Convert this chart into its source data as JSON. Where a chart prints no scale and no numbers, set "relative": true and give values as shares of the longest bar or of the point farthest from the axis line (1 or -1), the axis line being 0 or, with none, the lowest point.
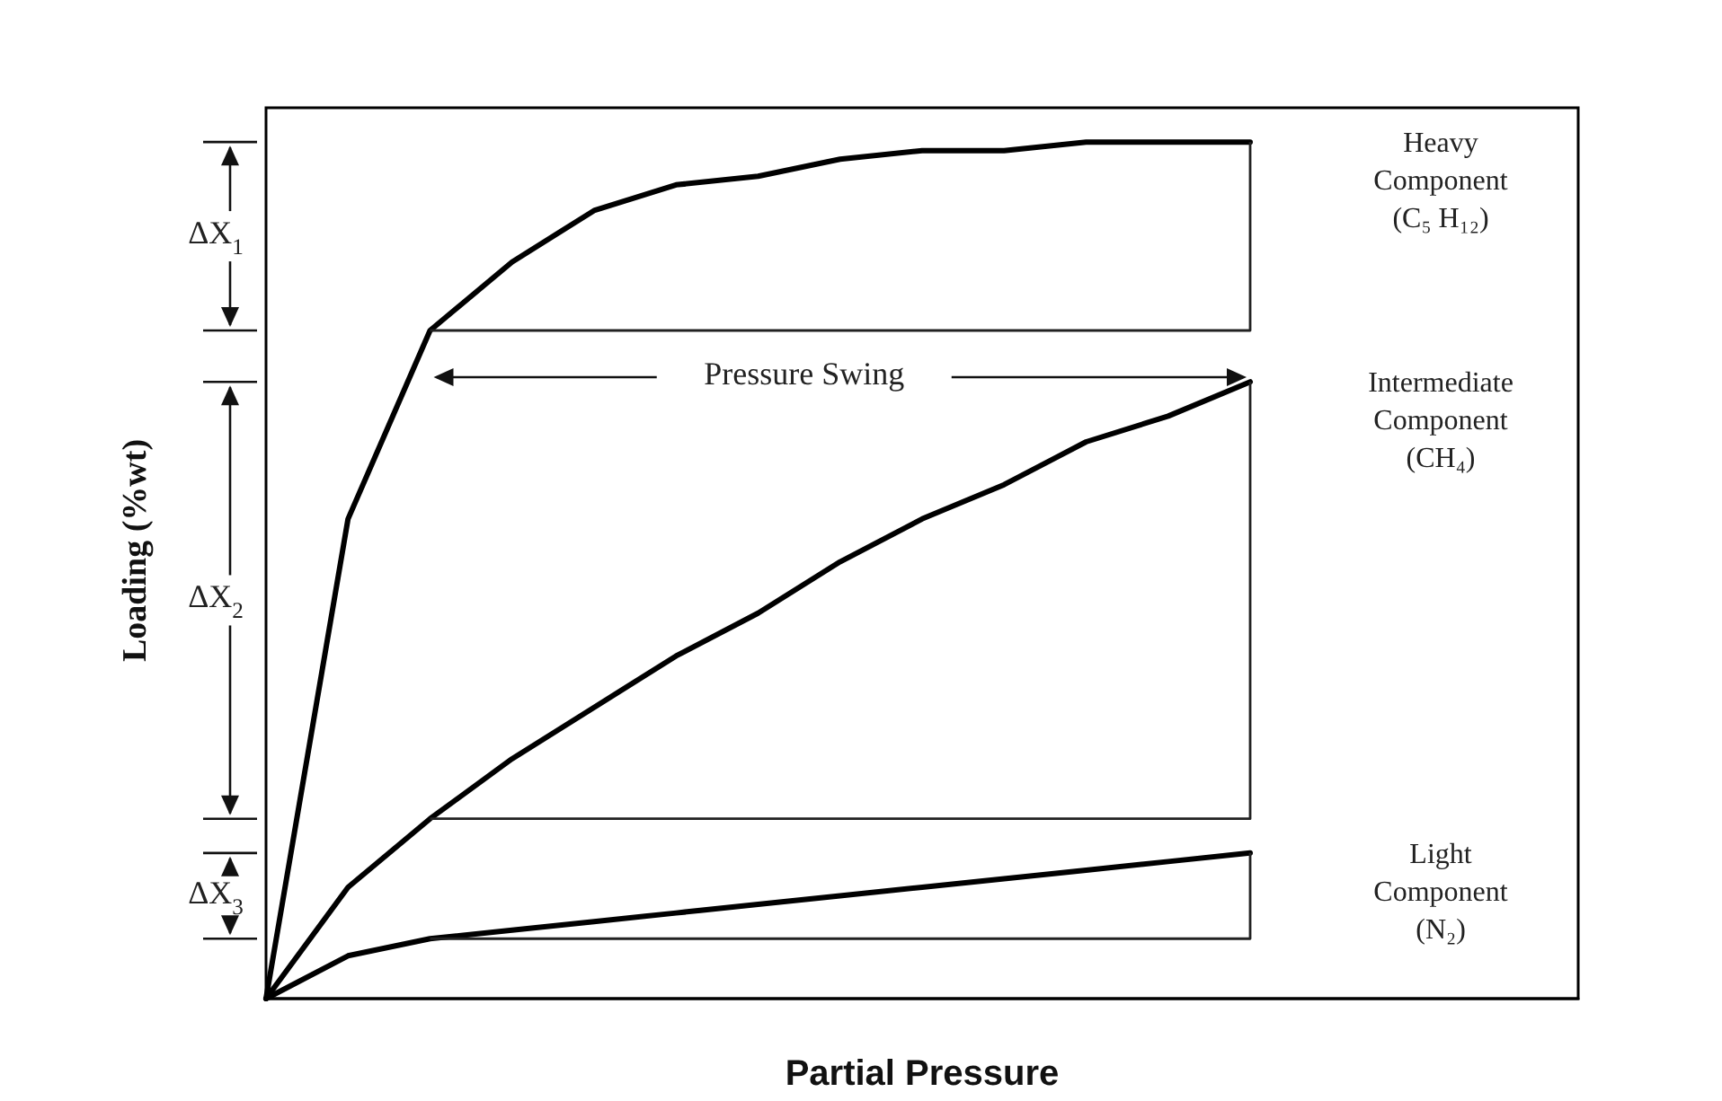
{
  "chart_data": {
    "type": "line",
    "relative": true,
    "xlabel": "Partial Pressure",
    "ylabel": "Loading (%wt)",
    "categories": [
      null,
      null,
      null,
      null,
      null,
      null,
      null,
      null,
      null,
      null,
      null,
      null,
      null,
      null,
      null,
      null,
      null
    ],
    "series": [
      {
        "name": "Heavy Component (C₅ H₁₂)",
        "color": "#000000",
        "values": [
          0,
          0.56,
          0.78,
          0.86,
          0.92,
          0.95,
          0.96,
          0.98,
          0.99,
          0.99,
          1.0,
          1.0,
          1.0,
          null,
          null,
          null,
          null
        ]
      },
      {
        "name": "Intermediate Component (CH₄)",
        "color": "#000000",
        "values": [
          0,
          0.13,
          0.21,
          0.28,
          0.34,
          0.4,
          0.45,
          0.51,
          0.56,
          0.6,
          0.65,
          0.68,
          0.72,
          null,
          null,
          null,
          null
        ]
      },
      {
        "name": "Light Component (N₂)",
        "color": "#000000",
        "values": [
          0,
          0.05,
          0.07,
          0.08,
          0.09,
          0.1,
          0.11,
          0.12,
          0.13,
          0.14,
          0.15,
          0.16,
          0.17,
          null,
          null,
          null,
          null
        ]
      },
      {
        "type": "step",
        "color": "#222222",
        "values": [
          null,
          null,
          0.78,
          0.78,
          0.78,
          0.78,
          0.78,
          0.78,
          0.78,
          0.78,
          0.78,
          0.78,
          1.0,
          null,
          null,
          null,
          null
        ]
      },
      {
        "type": "step",
        "color": "#222222",
        "values": [
          null,
          null,
          0.21,
          0.21,
          0.21,
          0.21,
          0.21,
          0.21,
          0.21,
          0.21,
          0.21,
          0.21,
          0.72,
          null,
          null,
          null,
          null
        ]
      },
      {
        "type": "step",
        "color": "#222222",
        "values": [
          null,
          null,
          0.07,
          0.07,
          0.07,
          0.07,
          0.07,
          0.07,
          0.07,
          0.07,
          0.07,
          0.07,
          0.17,
          null,
          null,
          null,
          null
        ]
      }
    ],
    "annotations": [
      "ΔX$_{1}$",
      "ΔX$_{2}$",
      "ΔX$_{3}$",
      "Pressure Swing"
    ]
  }
}
